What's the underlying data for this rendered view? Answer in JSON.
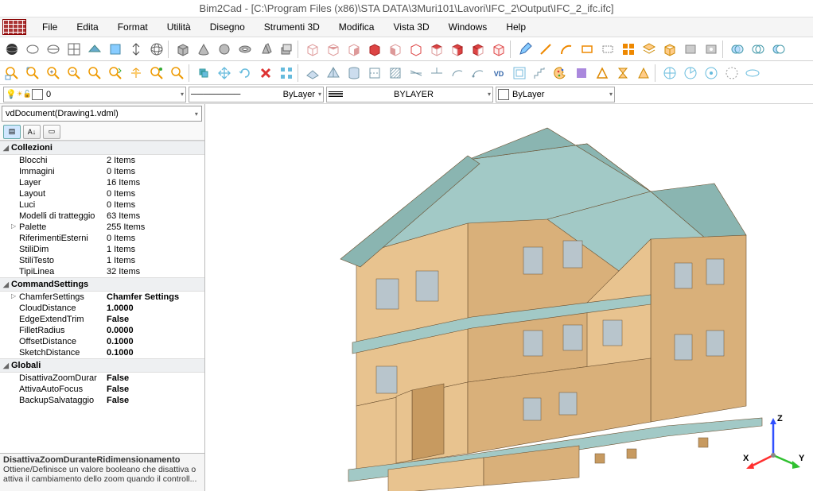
{
  "title": "Bim2Cad - [C:\\Program Files (x86)\\STA DATA\\3Muri101\\Lavori\\IFC_2\\Output\\IFC_2_ifc.ifc]",
  "menu": [
    "File",
    "Edita",
    "Format",
    "Utilità",
    "Disegno",
    "Strumenti 3D",
    "Modifica",
    "Vista 3D",
    "Windows",
    "Help"
  ],
  "layerbar": {
    "current_layer_index": "0",
    "linetype_label": "ByLayer",
    "lineweight_label": "BYLAYER",
    "color_label": "ByLayer",
    "color_swatch": "#ffffff"
  },
  "docselect": "vdDocument(Drawing1.vdml)",
  "sections": [
    {
      "title": "Collezioni",
      "rows": [
        {
          "k": "Blocchi",
          "v": "2 Items"
        },
        {
          "k": "Immagini",
          "v": "0 Items"
        },
        {
          "k": "Layer",
          "v": "16 Items"
        },
        {
          "k": "Layout",
          "v": "0 Items"
        },
        {
          "k": "Luci",
          "v": "0 Items"
        },
        {
          "k": "Modelli di tratteggio",
          "v": "63 Items"
        },
        {
          "k": "Palette",
          "v": "255 Items",
          "marker": "▷"
        },
        {
          "k": "RiferimentiEsterni",
          "v": "0 Items"
        },
        {
          "k": "StiliDim",
          "v": "1 Items"
        },
        {
          "k": "StiliTesto",
          "v": "1 Items"
        },
        {
          "k": "TipiLinea",
          "v": "32 Items"
        }
      ]
    },
    {
      "title": "CommandSettings",
      "rows": [
        {
          "k": "ChamferSettings",
          "v": "Chamfer Settings",
          "bold": true,
          "marker": "▷"
        },
        {
          "k": "CloudDistance",
          "v": "1.0000",
          "bold": true
        },
        {
          "k": "EdgeExtendTrim",
          "v": "False",
          "bold": true
        },
        {
          "k": "FilletRadius",
          "v": "0.0000",
          "bold": true
        },
        {
          "k": "OffsetDistance",
          "v": "0.1000",
          "bold": true
        },
        {
          "k": "SketchDistance",
          "v": "0.1000",
          "bold": true
        }
      ]
    },
    {
      "title": "Globali",
      "rows": [
        {
          "k": "DisattivaZoomDurar",
          "v": "False",
          "bold": true
        },
        {
          "k": "AttivaAutoFocus",
          "v": "False",
          "bold": true
        },
        {
          "k": "BackupSalvataggio",
          "v": "False",
          "bold": true
        }
      ]
    }
  ],
  "help": {
    "title": "DisattivaZoomDuranteRidimensionamento",
    "text": "Ottiene/Definisce un valore booleano che disattiva o attiva il cambiamento dello zoom quando il controll..."
  },
  "building": {
    "wall_color": "#e8c38f",
    "wall_shade": "#d9b07a",
    "wall_dark": "#c79a60",
    "roof_color": "#a2c9c6",
    "roof_shade": "#8ab5b1",
    "glass_color": "#b8c5cc",
    "edge_color": "#6b5030"
  },
  "axis": {
    "x": {
      "label": "X",
      "color": "#ff3030"
    },
    "y": {
      "label": "Y",
      "color": "#30c030"
    },
    "z": {
      "label": "Z",
      "color": "#3050ff"
    }
  }
}
